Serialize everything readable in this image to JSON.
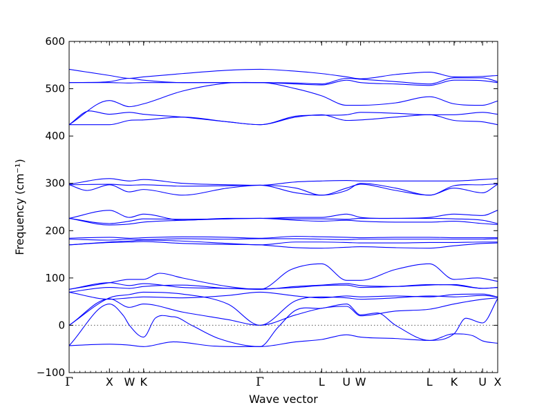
{
  "chart_data": {
    "type": "line",
    "title": "",
    "xlabel": "Wave vector",
    "ylabel": "Frequency (cm⁻¹)",
    "ylim": [
      -100,
      600
    ],
    "yticks": [
      -100,
      0,
      100,
      200,
      300,
      400,
      500,
      600
    ],
    "zero_line": true,
    "grid": false,
    "legend": "none",
    "line_color": "#0000ff",
    "q_points": [
      "Γ",
      "X",
      "W",
      "K",
      "Γ",
      "L",
      "U",
      "W",
      "L",
      "K",
      "U",
      "X"
    ],
    "q_positions": [
      0,
      0.8889,
      1.3333,
      1.6429,
      4.2092,
      5.5702,
      6.1169,
      6.4283,
      7.9473,
      8.4911,
      9.1196,
      9.4529
    ],
    "x_range": [
      0,
      9.4529
    ],
    "series": [
      {
        "x": [
          0,
          0.89,
          1.33,
          1.64,
          2.3,
          3.2,
          4.21,
          5.0,
          5.57,
          6.12,
          6.43,
          7.2,
          7.95,
          8.49,
          8.9,
          9.12,
          9.45
        ],
        "y": [
          -43,
          -40,
          -42,
          -45,
          -35,
          -44,
          -45,
          -35,
          -30,
          -20,
          -25,
          -28,
          -32,
          -18,
          -22,
          -33,
          -38
        ]
      },
      {
        "x": [
          0,
          0.89,
          1.2,
          1.33,
          1.64,
          1.9,
          2.3,
          2.7,
          3.3,
          4.21,
          4.6,
          5.0,
          5.57,
          6.12,
          6.43,
          6.8,
          7.2,
          7.95,
          8.49,
          8.75,
          9.12,
          9.45
        ],
        "y": [
          -43,
          45,
          20,
          0,
          -25,
          15,
          18,
          0,
          -28,
          -45,
          -5,
          32,
          36,
          45,
          22,
          26,
          0,
          -32,
          -18,
          15,
          5,
          56
        ]
      },
      {
        "x": [
          0,
          0.89,
          1.33,
          1.64,
          2.5,
          3.5,
          4.21,
          5.0,
          5.57,
          6.12,
          6.43,
          7.2,
          7.95,
          8.49,
          9.12,
          9.45
        ],
        "y": [
          0,
          56,
          38,
          45,
          28,
          12,
          0,
          22,
          36,
          40,
          20,
          30,
          34,
          45,
          55,
          58
        ]
      },
      {
        "x": [
          0,
          0.89,
          1.33,
          1.64,
          2.5,
          3.5,
          4.21,
          5.0,
          5.57,
          6.12,
          6.43,
          7.2,
          7.95,
          8.49,
          9.12,
          9.45
        ],
        "y": [
          0,
          58,
          65,
          70,
          66,
          45,
          0,
          52,
          60,
          58,
          55,
          58,
          62,
          60,
          63,
          60
        ]
      },
      {
        "x": [
          0,
          0.89,
          1.33,
          1.64,
          2.5,
          3.5,
          4.21,
          5.0,
          5.57,
          6.12,
          6.43,
          7.2,
          7.95,
          8.49,
          9.12,
          9.45
        ],
        "y": [
          70,
          55,
          58,
          60,
          58,
          63,
          70,
          62,
          58,
          62,
          60,
          62,
          60,
          65,
          66,
          60
        ]
      },
      {
        "x": [
          0,
          0.89,
          1.33,
          1.64,
          2.5,
          3.5,
          4.21,
          5.0,
          5.57,
          6.12,
          6.43,
          7.2,
          7.95,
          8.49,
          9.12,
          9.45
        ],
        "y": [
          70,
          80,
          78,
          82,
          85,
          78,
          77,
          80,
          84,
          85,
          80,
          82,
          86,
          85,
          78,
          80
        ]
      },
      {
        "x": [
          0,
          0.89,
          1.33,
          1.64,
          2.0,
          2.5,
          3.5,
          4.21,
          4.9,
          5.57,
          6.12,
          6.43,
          7.2,
          7.95,
          8.49,
          9.0,
          9.45
        ],
        "y": [
          76,
          90,
          97,
          97,
          110,
          100,
          82,
          76,
          118,
          130,
          95,
          95,
          118,
          130,
          97,
          100,
          93
        ]
      },
      {
        "x": [
          0,
          0.89,
          1.33,
          1.64,
          2.5,
          3.5,
          4.21,
          5.0,
          5.57,
          6.12,
          6.43,
          7.2,
          7.95,
          8.49,
          9.12,
          9.45
        ],
        "y": [
          76,
          90,
          84,
          88,
          80,
          78,
          76,
          82,
          85,
          88,
          84,
          82,
          85,
          86,
          78,
          80
        ]
      },
      {
        "x": [
          0,
          0.89,
          1.33,
          1.64,
          2.5,
          3.5,
          4.21,
          5.0,
          5.57,
          6.12,
          6.43,
          7.2,
          7.95,
          8.49,
          9.12,
          9.45
        ],
        "y": [
          170,
          175,
          176,
          177,
          173,
          171,
          170,
          164,
          163,
          165,
          166,
          164,
          163,
          168,
          173,
          174
        ]
      },
      {
        "x": [
          0,
          0.89,
          1.33,
          1.64,
          2.5,
          3.5,
          4.21,
          5.0,
          5.57,
          6.12,
          6.43,
          7.2,
          7.95,
          8.49,
          9.12,
          9.45
        ],
        "y": [
          170,
          176,
          178,
          180,
          178,
          173,
          170,
          176,
          176,
          175,
          174,
          174,
          175,
          175,
          176,
          176
        ]
      },
      {
        "x": [
          0,
          0.89,
          1.33,
          1.64,
          2.5,
          3.5,
          4.21,
          5.0,
          5.57,
          6.12,
          6.43,
          7.2,
          7.95,
          8.49,
          9.12,
          9.45
        ],
        "y": [
          182,
          180,
          182,
          181,
          183,
          182,
          183,
          183,
          182,
          181,
          182,
          182,
          182,
          182,
          182,
          183
        ]
      },
      {
        "x": [
          0,
          0.89,
          1.33,
          1.64,
          2.5,
          3.5,
          4.21,
          5.0,
          5.57,
          6.12,
          6.43,
          7.2,
          7.95,
          8.49,
          9.12,
          9.45
        ],
        "y": [
          184,
          186,
          184,
          185,
          187,
          186,
          184,
          188,
          187,
          186,
          185,
          186,
          186,
          185,
          185,
          185
        ]
      },
      {
        "x": [
          0,
          0.89,
          1.33,
          1.64,
          2.5,
          3.5,
          4.21,
          5.0,
          5.57,
          6.12,
          6.43,
          7.2,
          7.95,
          8.49,
          9.12,
          9.45
        ],
        "y": [
          226,
          212,
          214,
          218,
          222,
          225,
          226,
          222,
          220,
          222,
          220,
          218,
          218,
          220,
          215,
          213
        ]
      },
      {
        "x": [
          0,
          0.89,
          1.33,
          1.64,
          2.5,
          3.5,
          4.21,
          5.0,
          5.57,
          6.12,
          6.43,
          7.2,
          7.95,
          8.49,
          9.12,
          9.45
        ],
        "y": [
          226,
          215,
          220,
          225,
          224,
          225,
          226,
          225,
          225,
          224,
          226,
          226,
          226,
          225,
          222,
          215
        ]
      },
      {
        "x": [
          0,
          0.89,
          1.33,
          1.64,
          2.5,
          3.5,
          4.21,
          5.0,
          5.57,
          6.12,
          6.43,
          7.2,
          7.95,
          8.49,
          9.12,
          9.45
        ],
        "y": [
          226,
          243,
          228,
          235,
          222,
          226,
          226,
          228,
          228,
          235,
          228,
          226,
          228,
          235,
          232,
          243
        ]
      },
      {
        "x": [
          0,
          0.4,
          0.89,
          1.33,
          1.64,
          2.5,
          3.5,
          4.21,
          5.0,
          5.57,
          6.12,
          6.43,
          7.2,
          7.95,
          8.49,
          9.12,
          9.45
        ],
        "y": [
          297,
          285,
          297,
          282,
          287,
          275,
          290,
          296,
          280,
          275,
          290,
          298,
          285,
          275,
          290,
          280,
          298
        ]
      },
      {
        "x": [
          0,
          0.89,
          1.33,
          1.64,
          2.5,
          3.5,
          4.21,
          5.0,
          5.57,
          6.12,
          6.43,
          7.2,
          7.95,
          8.49,
          9.12,
          9.45
        ],
        "y": [
          297,
          298,
          296,
          297,
          294,
          295,
          296,
          290,
          275,
          285,
          300,
          290,
          275,
          295,
          297,
          299
        ]
      },
      {
        "x": [
          0,
          0.89,
          1.33,
          1.64,
          2.5,
          3.5,
          4.21,
          5.0,
          5.57,
          6.12,
          6.43,
          7.2,
          7.95,
          8.49,
          9.12,
          9.45
        ],
        "y": [
          298,
          310,
          305,
          308,
          300,
          297,
          296,
          303,
          305,
          306,
          305,
          305,
          305,
          305,
          308,
          310
        ]
      },
      {
        "x": [
          0,
          0.89,
          1.33,
          1.64,
          2.5,
          3.5,
          4.21,
          5.0,
          5.57,
          6.12,
          6.43,
          7.2,
          7.95,
          8.49,
          9.12,
          9.45
        ],
        "y": [
          424,
          424,
          433,
          434,
          440,
          430,
          424,
          440,
          445,
          433,
          434,
          440,
          445,
          433,
          430,
          424
        ]
      },
      {
        "x": [
          0,
          0.45,
          0.89,
          1.33,
          1.64,
          2.5,
          3.5,
          4.21,
          5.0,
          5.57,
          6.12,
          6.43,
          7.2,
          7.95,
          8.49,
          9.12,
          9.45
        ],
        "y": [
          424,
          453,
          446,
          450,
          446,
          440,
          430,
          424,
          442,
          444,
          445,
          450,
          448,
          445,
          445,
          450,
          446
        ]
      },
      {
        "x": [
          0,
          0.89,
          1.33,
          1.64,
          2.5,
          3.5,
          4.21,
          5.0,
          5.57,
          6.12,
          6.43,
          7.2,
          7.95,
          8.49,
          9.12,
          9.45
        ],
        "y": [
          424,
          475,
          462,
          468,
          495,
          512,
          513,
          500,
          485,
          465,
          465,
          470,
          483,
          468,
          465,
          474
        ]
      },
      {
        "x": [
          0,
          0.89,
          1.33,
          1.64,
          2.5,
          3.5,
          4.21,
          5.0,
          5.57,
          6.12,
          6.43,
          7.2,
          7.95,
          8.49,
          9.12,
          9.45
        ],
        "y": [
          513,
          513,
          512,
          513,
          513,
          513,
          513,
          510,
          508,
          518,
          513,
          510,
          507,
          518,
          517,
          513
        ]
      },
      {
        "x": [
          0,
          0.89,
          1.33,
          1.64,
          2.5,
          3.5,
          4.21,
          5.0,
          5.57,
          6.12,
          6.43,
          7.2,
          7.95,
          8.49,
          9.12,
          9.45
        ],
        "y": [
          513,
          515,
          522,
          518,
          513,
          513,
          513,
          512,
          510,
          522,
          520,
          515,
          510,
          523,
          523,
          515
        ]
      },
      {
        "x": [
          0,
          0.89,
          1.33,
          1.64,
          2.5,
          3.5,
          4.21,
          5.0,
          5.57,
          6.12,
          6.43,
          7.2,
          7.95,
          8.49,
          9.12,
          9.45
        ],
        "y": [
          541,
          528,
          522,
          525,
          532,
          539,
          541,
          537,
          532,
          525,
          521,
          530,
          535,
          525,
          526,
          528
        ]
      }
    ]
  }
}
